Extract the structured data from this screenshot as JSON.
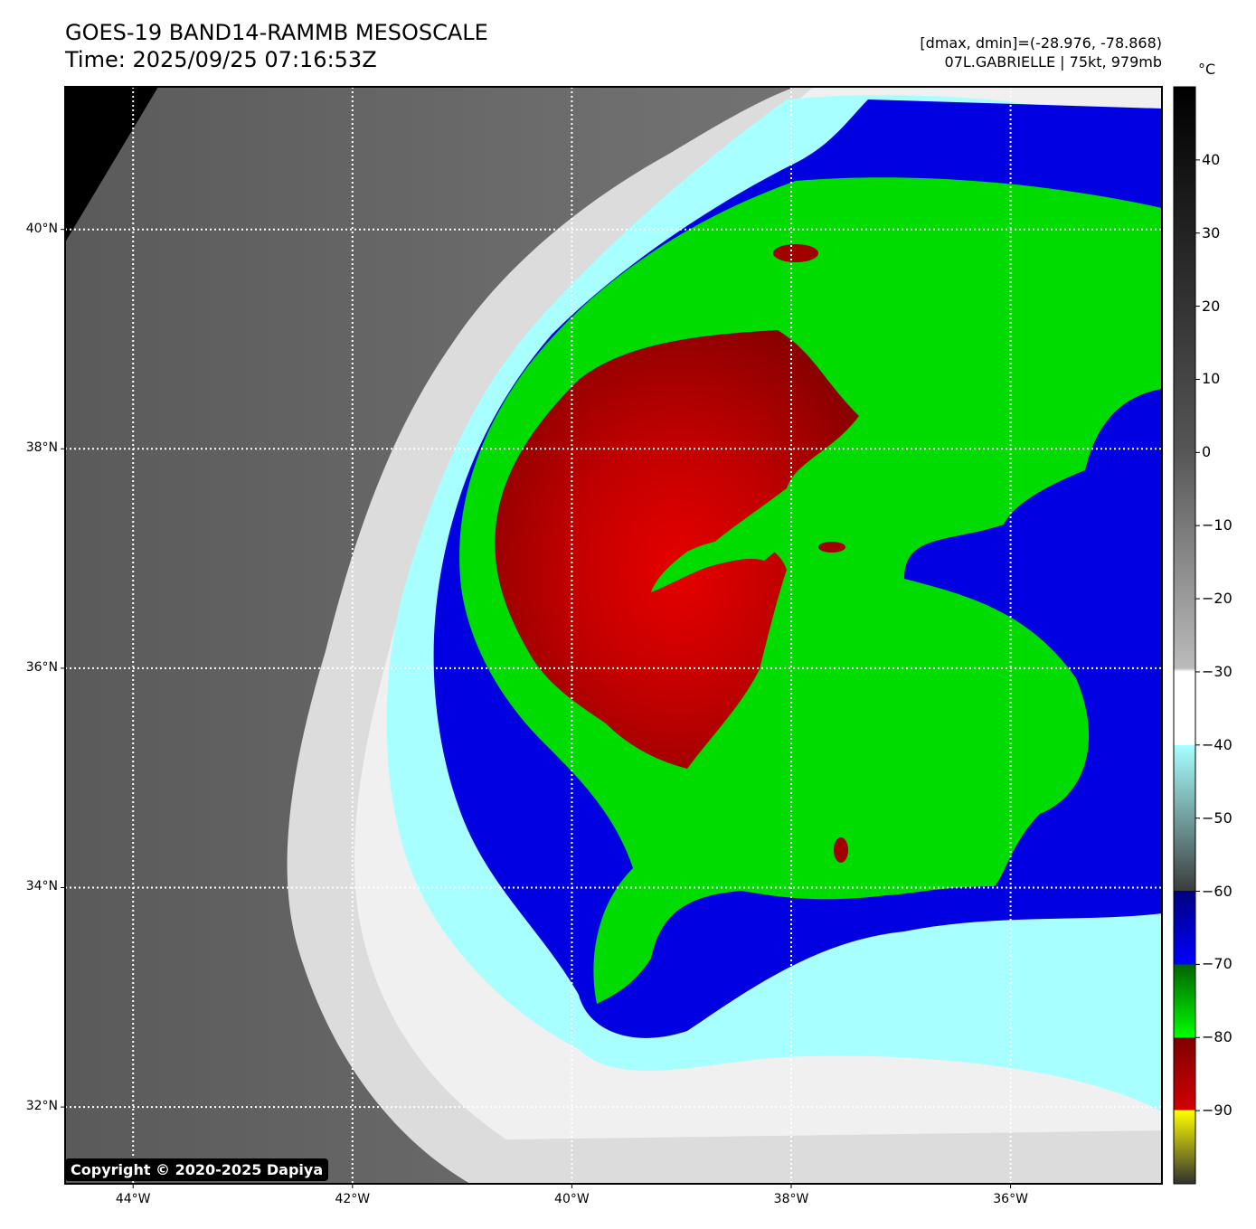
{
  "title": {
    "line1": "GOES-19 BAND14-RAMMB MESOSCALE",
    "line2": "Time: 2025/09/25 07:16:53Z"
  },
  "info": {
    "line1": "[dmax, dmin]=(-28.976, -78.868)",
    "line2": "07L.GABRIELLE | 75kt, 979mb"
  },
  "colorbar": {
    "unit": "°C",
    "ticks": [
      "40",
      "30",
      "20",
      "10",
      "0",
      "−10",
      "−20",
      "−30",
      "−40",
      "−50",
      "−60",
      "−70",
      "−80",
      "−90"
    ],
    "range": [
      -100,
      50
    ],
    "colors": {
      "black": "#000000",
      "gray": "#808080",
      "white": "#ffffff",
      "cyan": "#a8ffff",
      "blue": "#0000e0",
      "green": "#00dc00",
      "red": "#a00000",
      "yellow": "#ffff00"
    }
  },
  "map": {
    "lat_labels": [
      "40°N",
      "38°N",
      "36°N",
      "34°N",
      "32°N"
    ],
    "lon_labels": [
      "44°W",
      "42°W",
      "40°W",
      "38°W",
      "36°W"
    ],
    "lat_values": [
      40,
      38,
      36,
      34,
      32
    ],
    "lon_values": [
      -44,
      -42,
      -40,
      -38,
      -36
    ]
  },
  "copyright": "Copyright © 2020-2025 Dapiya"
}
